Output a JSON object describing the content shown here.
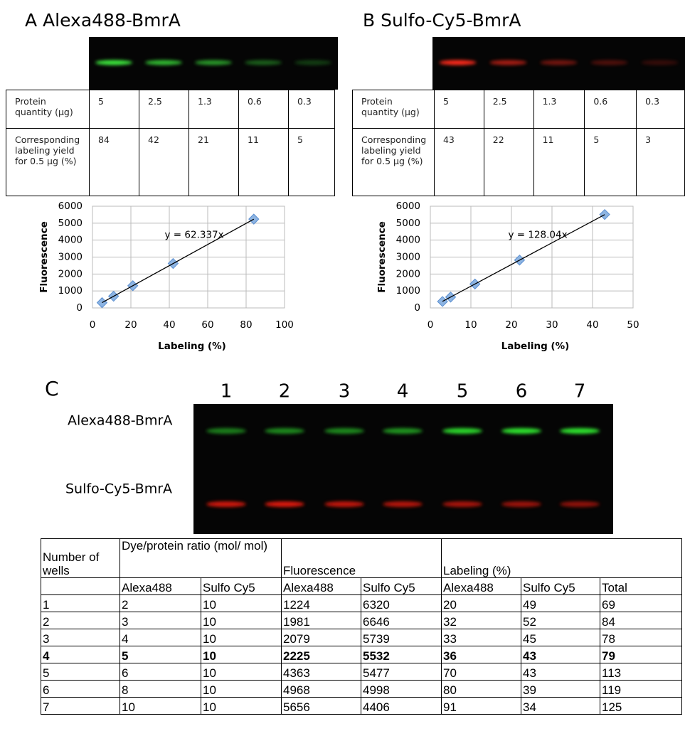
{
  "panel_a": {
    "title": "A Alexa488-BmrA",
    "table": [
      [
        "Protein quantity (µg)",
        5,
        2.5,
        1.3,
        0.6,
        0.3
      ],
      [
        "Corresponding labeling yield for 0.5 µg (%)",
        84,
        42,
        21,
        11,
        5
      ]
    ]
  },
  "panel_b": {
    "title": "B Sulfo-Cy5-BmrA",
    "table": [
      [
        "Protein quantity (µg)",
        5,
        2.5,
        1.3,
        0.6,
        0.3
      ],
      [
        "Corresponding labeling yield for 0.5 µg (%)",
        43,
        22,
        11,
        5,
        3
      ]
    ]
  },
  "chart_data": [
    {
      "type": "scatter",
      "x_label": "Labeling (%)",
      "y_label": "Fluorescence",
      "x": [
        84,
        42,
        21,
        11,
        5
      ],
      "values": [
        5240,
        2620,
        1310,
        690,
        310
      ],
      "color": "#8db4e2",
      "xlim": [
        0,
        100
      ],
      "xticks": [
        0,
        20,
        40,
        60,
        80,
        100
      ],
      "ylim": [
        0,
        6000
      ],
      "yticks": [
        0,
        1000,
        2000,
        3000,
        4000,
        5000,
        6000
      ],
      "grid": true,
      "trendline": {
        "label": "y = 62.337x",
        "slope": 62.337,
        "color": "#000000"
      }
    },
    {
      "type": "scatter",
      "x_label": "Labeling (%)",
      "y_label": "Fluorescence",
      "x": [
        43,
        22,
        11,
        5,
        3
      ],
      "values": [
        5510,
        2820,
        1410,
        640,
        380
      ],
      "color": "#8db4e2",
      "xlim": [
        0,
        50
      ],
      "xticks": [
        0,
        10,
        20,
        30,
        40,
        50
      ],
      "ylim": [
        0,
        6000
      ],
      "yticks": [
        0,
        1000,
        2000,
        3000,
        4000,
        5000,
        6000
      ],
      "grid": true,
      "trendline": {
        "label": "y = 128.04x",
        "slope": 128.04,
        "color": "#000000"
      }
    }
  ],
  "panel_c": {
    "title": "C",
    "lanes": [
      1,
      2,
      3,
      4,
      5,
      6,
      7
    ],
    "gel_rows": [
      "Alexa488-BmrA",
      "Sulfo-Cy5-BmrA"
    ],
    "table": {
      "header": [
        "Number of wells",
        "Dye/protein ratio (mol/ mol)",
        "Fluorescence",
        "Labeling (%)"
      ],
      "subheader": [
        "Alexa488",
        "Sulfo Cy5",
        "Alexa488",
        "Sulfo Cy5",
        "Alexa488",
        "Sulfo Cy5",
        "Total"
      ],
      "rows": [
        [
          1,
          2,
          10,
          1224,
          6320,
          20,
          49,
          69
        ],
        [
          2,
          3,
          10,
          1981,
          6646,
          32,
          52,
          84
        ],
        [
          3,
          4,
          10,
          2079,
          5739,
          33,
          45,
          78
        ],
        [
          4,
          5,
          10,
          2225,
          5532,
          36,
          43,
          79
        ],
        [
          5,
          6,
          10,
          4363,
          5477,
          70,
          43,
          113
        ],
        [
          6,
          8,
          10,
          4968,
          4998,
          80,
          39,
          119
        ],
        [
          7,
          10,
          10,
          5656,
          4406,
          91,
          34,
          125
        ]
      ]
    }
  }
}
